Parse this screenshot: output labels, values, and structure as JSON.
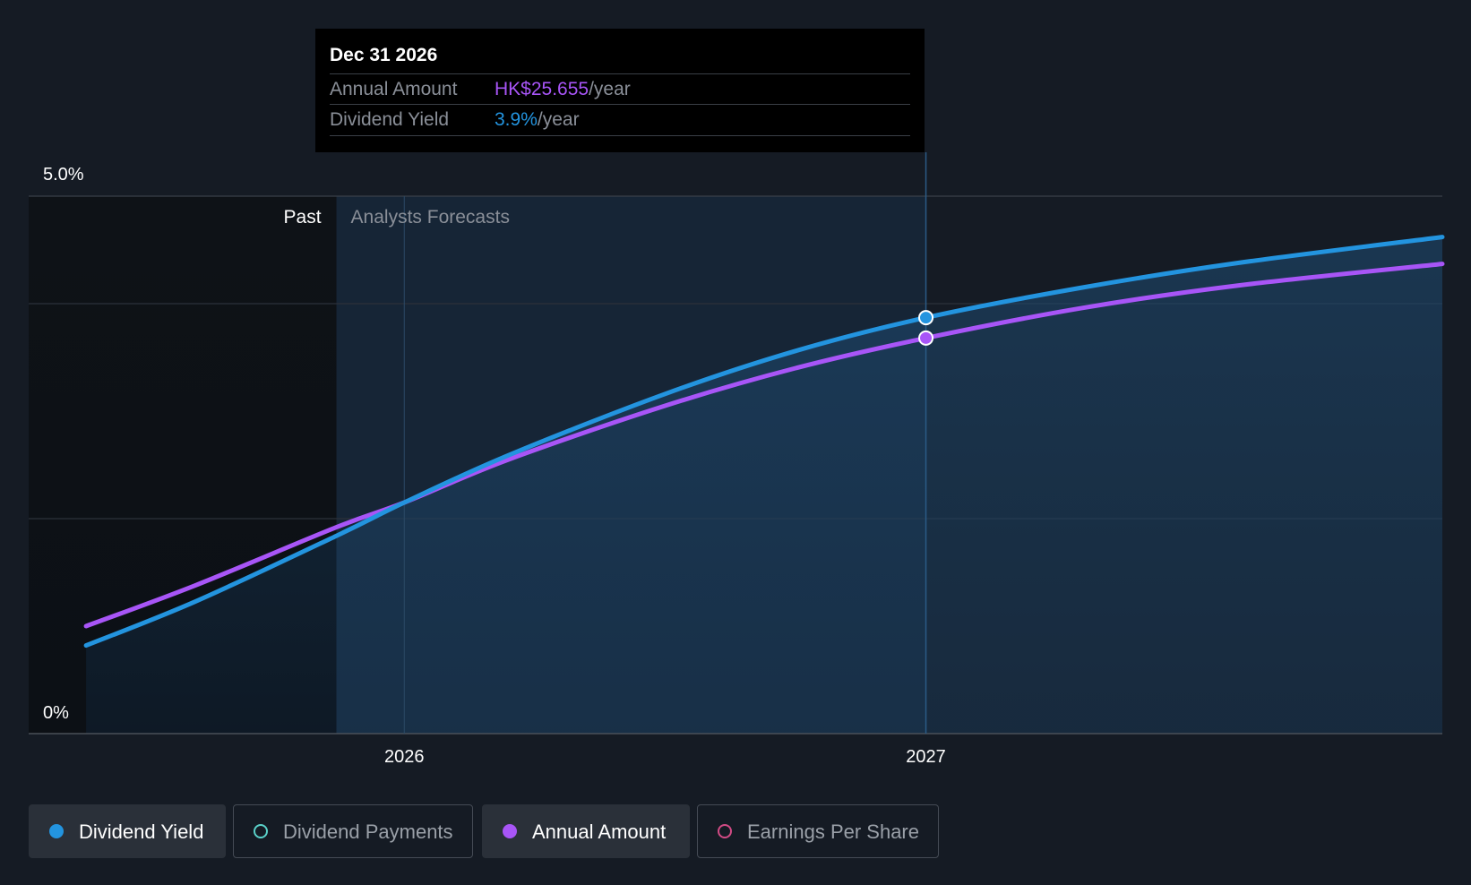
{
  "colors": {
    "dividend_yield": "#2394df",
    "annual_amount": "#a855f7",
    "dividend_payments": "#5ad1c9",
    "earnings_per_share": "#d24b85"
  },
  "tooltip": {
    "date": "Dec 31 2026",
    "rows": [
      {
        "label": "Annual Amount",
        "value": "HK$25.655",
        "suffix": "/year"
      },
      {
        "label": "Dividend Yield",
        "value": "3.9%",
        "suffix": "/year"
      }
    ]
  },
  "chart_data": {
    "type": "line",
    "y_tick_labels": [
      "5.0%",
      "0%"
    ],
    "ylim": [
      0,
      5.0
    ],
    "x_tick_labels": [
      "2026",
      "2027"
    ],
    "x_ticks": [
      2026.0,
      2027.0
    ],
    "xlim": [
      2025.28,
      2027.99
    ],
    "past_forecast_split": 2025.87,
    "region_labels": {
      "past": "Past",
      "forecast": "Analysts Forecasts"
    },
    "highlight_x": 2027.0,
    "series": [
      {
        "name": "Dividend Yield",
        "color_key": "dividend_yield",
        "x": [
          2025.39,
          2025.6,
          2025.87,
          2026.0,
          2026.2,
          2026.5,
          2026.75,
          2027.0,
          2027.3,
          2027.6,
          2027.99
        ],
        "values": [
          0.82,
          1.23,
          1.84,
          2.15,
          2.59,
          3.16,
          3.56,
          3.87,
          4.15,
          4.38,
          4.62
        ]
      },
      {
        "name": "Annual Amount",
        "color_key": "annual_amount",
        "x": [
          2025.39,
          2025.6,
          2025.87,
          2026.0,
          2026.2,
          2026.5,
          2026.75,
          2027.0,
          2027.3,
          2027.6,
          2027.99
        ],
        "values": [
          1.0,
          1.38,
          1.92,
          2.15,
          2.55,
          3.05,
          3.4,
          3.68,
          3.96,
          4.17,
          4.37
        ]
      }
    ]
  },
  "legend": [
    {
      "label": "Dividend Yield",
      "color_key": "dividend_yield",
      "active": true
    },
    {
      "label": "Dividend Payments",
      "color_key": "dividend_payments",
      "active": false
    },
    {
      "label": "Annual Amount",
      "color_key": "annual_amount",
      "active": true
    },
    {
      "label": "Earnings Per Share",
      "color_key": "earnings_per_share",
      "active": false
    }
  ]
}
